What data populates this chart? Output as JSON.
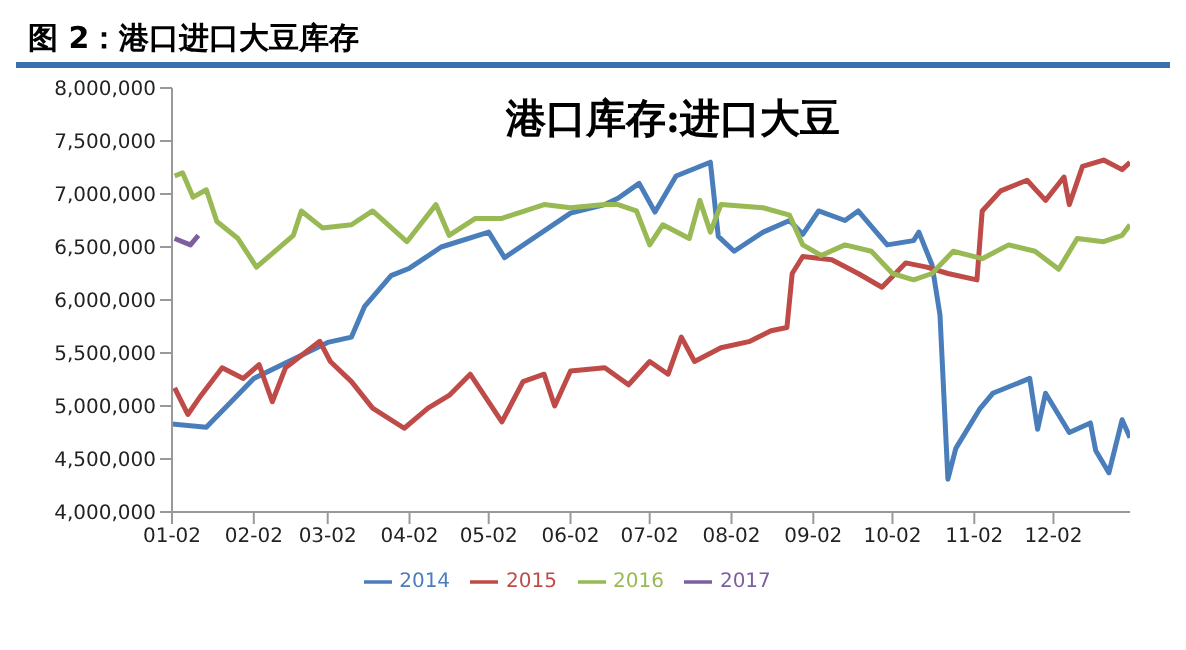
{
  "chart_data": {
    "type": "line",
    "title": "图 2：港口进口大豆库存",
    "subtitle": "港口库存:进口大豆",
    "xlim": [
      "--01-02",
      "--12-31"
    ],
    "xticks": [
      {
        "value": "--01-02",
        "label": "01-02"
      },
      {
        "value": "--02-02",
        "label": "02-02"
      },
      {
        "value": "--03-02",
        "label": "03-02"
      },
      {
        "value": "--04-02",
        "label": "04-02"
      },
      {
        "value": "--05-02",
        "label": "05-02"
      },
      {
        "value": "--06-02",
        "label": "06-02"
      },
      {
        "value": "--07-02",
        "label": "07-02"
      },
      {
        "value": "--08-02",
        "label": "08-02"
      },
      {
        "value": "--09-02",
        "label": "09-02"
      },
      {
        "value": "--10-02",
        "label": "10-02"
      },
      {
        "value": "--11-02",
        "label": "11-02"
      },
      {
        "value": "--12-02",
        "label": "12-02"
      }
    ],
    "ylim": [
      4000000,
      8000000
    ],
    "yticks": [
      {
        "value": 4000000,
        "label": "4,000,000"
      },
      {
        "value": 4500000,
        "label": "4,500,000"
      },
      {
        "value": 5000000,
        "label": "5,000,000"
      },
      {
        "value": 5500000,
        "label": "5,500,000"
      },
      {
        "value": 6000000,
        "label": "6,000,000"
      },
      {
        "value": 6500000,
        "label": "6,500,000"
      },
      {
        "value": 7000000,
        "label": "7,000,000"
      },
      {
        "value": 7500000,
        "label": "7,500,000"
      },
      {
        "value": 8000000,
        "label": "8,000,000"
      }
    ],
    "grid": false,
    "legend": "bottom",
    "line_style": "solid",
    "series": [
      {
        "name": "2014",
        "color": "#4a7ebb",
        "x": [
          "--01-02",
          "--01-15",
          "--02-02",
          "--03-02",
          "--03-11",
          "--03-16",
          "--03-26",
          "--04-02",
          "--04-14",
          "--05-02",
          "--05-08",
          "--06-02",
          "--06-15",
          "--06-20",
          "--06-28",
          "--07-04",
          "--07-12",
          "--07-25",
          "--07-28",
          "--08-03",
          "--08-14",
          "--08-24",
          "--08-29",
          "--09-04",
          "--09-14",
          "--09-19",
          "--09-30",
          "--10-10",
          "--10-12",
          "--10-17",
          "--10-20",
          "--10-23",
          "--10-26",
          "--11-04",
          "--11-09",
          "--11-17",
          "--11-23",
          "--11-26",
          "--11-29",
          "--12-08",
          "--12-16",
          "--12-18",
          "--12-23",
          "--12-28",
          "--12-31"
        ],
        "values": [
          4830000,
          4800000,
          5260000,
          5600000,
          5650000,
          5940000,
          6230000,
          6300000,
          6500000,
          6640000,
          6400000,
          6820000,
          6900000,
          6960000,
          7100000,
          6830000,
          7170000,
          7300000,
          6600000,
          6460000,
          6640000,
          6750000,
          6620000,
          6840000,
          6750000,
          6840000,
          6520000,
          6560000,
          6640000,
          6330000,
          5860000,
          4310000,
          4600000,
          4970000,
          5120000,
          5200000,
          5260000,
          4780000,
          5120000,
          4750000,
          4840000,
          4580000,
          4370000,
          4870000,
          4700000
        ]
      },
      {
        "name": "2015",
        "color": "#be4b48",
        "x": [
          "--01-03",
          "--01-08",
          "--01-13",
          "--01-21",
          "--01-29",
          "--02-04",
          "--02-09",
          "--02-14",
          "--02-27",
          "--03-03",
          "--03-11",
          "--03-19",
          "--03-31",
          "--04-09",
          "--04-17",
          "--04-25",
          "--05-07",
          "--05-15",
          "--05-23",
          "--05-27",
          "--06-02",
          "--06-15",
          "--06-24",
          "--07-02",
          "--07-09",
          "--07-14",
          "--07-19",
          "--07-29",
          "--08-09",
          "--08-17",
          "--08-23",
          "--08-25",
          "--08-29",
          "--09-09",
          "--09-19",
          "--09-28",
          "--10-07",
          "--10-15",
          "--10-23",
          "--11-03",
          "--11-05",
          "--11-12",
          "--11-22",
          "--11-29",
          "--12-06",
          "--12-08",
          "--12-13",
          "--12-21",
          "--12-28",
          "--12-31"
        ],
        "values": [
          5170000,
          4920000,
          5100000,
          5360000,
          5260000,
          5390000,
          5040000,
          5360000,
          5610000,
          5420000,
          5230000,
          4980000,
          4790000,
          4980000,
          5100000,
          5300000,
          4850000,
          5230000,
          5300000,
          5000000,
          5330000,
          5360000,
          5200000,
          5420000,
          5300000,
          5650000,
          5420000,
          5550000,
          5610000,
          5710000,
          5740000,
          6250000,
          6410000,
          6380000,
          6250000,
          6120000,
          6350000,
          6310000,
          6250000,
          6190000,
          6840000,
          7030000,
          7130000,
          6940000,
          7160000,
          6900000,
          7260000,
          7320000,
          7230000,
          7300000
        ]
      },
      {
        "name": "2016",
        "color": "#98b954",
        "x": [
          "--01-03",
          "--01-06",
          "--01-10",
          "--01-15",
          "--01-19",
          "--01-27",
          "--02-03",
          "--02-17",
          "--02-20",
          "--02-28",
          "--03-11",
          "--03-19",
          "--04-01",
          "--04-12",
          "--04-17",
          "--04-27",
          "--05-07",
          "--05-23",
          "--06-02",
          "--06-15",
          "--06-20",
          "--06-27",
          "--07-02",
          "--07-07",
          "--07-17",
          "--07-21",
          "--07-25",
          "--07-29",
          "--08-14",
          "--08-24",
          "--08-29",
          "--09-05",
          "--09-14",
          "--09-24",
          "--10-02",
          "--10-10",
          "--10-17",
          "--10-25",
          "--11-05",
          "--11-15",
          "--11-25",
          "--12-04",
          "--12-11",
          "--12-21",
          "--12-28",
          "--12-31"
        ],
        "values": [
          7170000,
          7200000,
          6970000,
          7040000,
          6740000,
          6580000,
          6310000,
          6610000,
          6840000,
          6680000,
          6710000,
          6840000,
          6550000,
          6900000,
          6610000,
          6770000,
          6770000,
          6900000,
          6870000,
          6900000,
          6900000,
          6840000,
          6520000,
          6710000,
          6580000,
          6940000,
          6640000,
          6900000,
          6870000,
          6800000,
          6520000,
          6420000,
          6520000,
          6460000,
          6250000,
          6190000,
          6250000,
          6460000,
          6390000,
          6520000,
          6460000,
          6290000,
          6580000,
          6550000,
          6610000,
          6710000
        ]
      },
      {
        "name": "2017",
        "color": "#7d5fa0",
        "x": [
          "--01-03",
          "--01-06",
          "--01-09",
          "--01-11",
          "--01-12"
        ],
        "values": [
          6580000,
          6550000,
          6520000,
          6580000,
          6610000
        ]
      }
    ]
  }
}
